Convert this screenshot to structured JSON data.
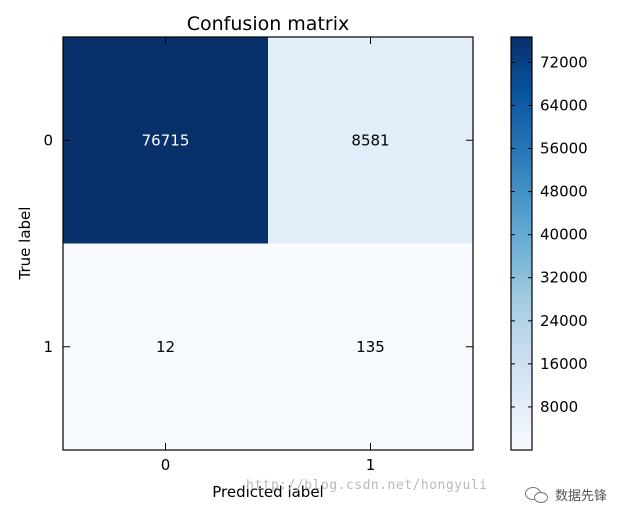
{
  "chart_data": {
    "type": "heatmap",
    "title": "Confusion matrix",
    "xlabel": "Predicted label",
    "ylabel": "True label",
    "x_categories": [
      "0",
      "1"
    ],
    "y_categories": [
      "0",
      "1"
    ],
    "matrix": [
      [
        76715,
        8581
      ],
      [
        12,
        135
      ]
    ],
    "colormap": "Blues",
    "colorbar": {
      "min": 0,
      "max": 76715,
      "ticks": [
        "72000",
        "64000",
        "56000",
        "48000",
        "40000",
        "32000",
        "24000",
        "16000",
        "8000"
      ]
    },
    "grid": false
  },
  "watermark": {
    "text": "http://blog.csdn.net/hongyuli",
    "brand": "数据先锋"
  },
  "icons": [
    "wechat-logo-icon"
  ]
}
